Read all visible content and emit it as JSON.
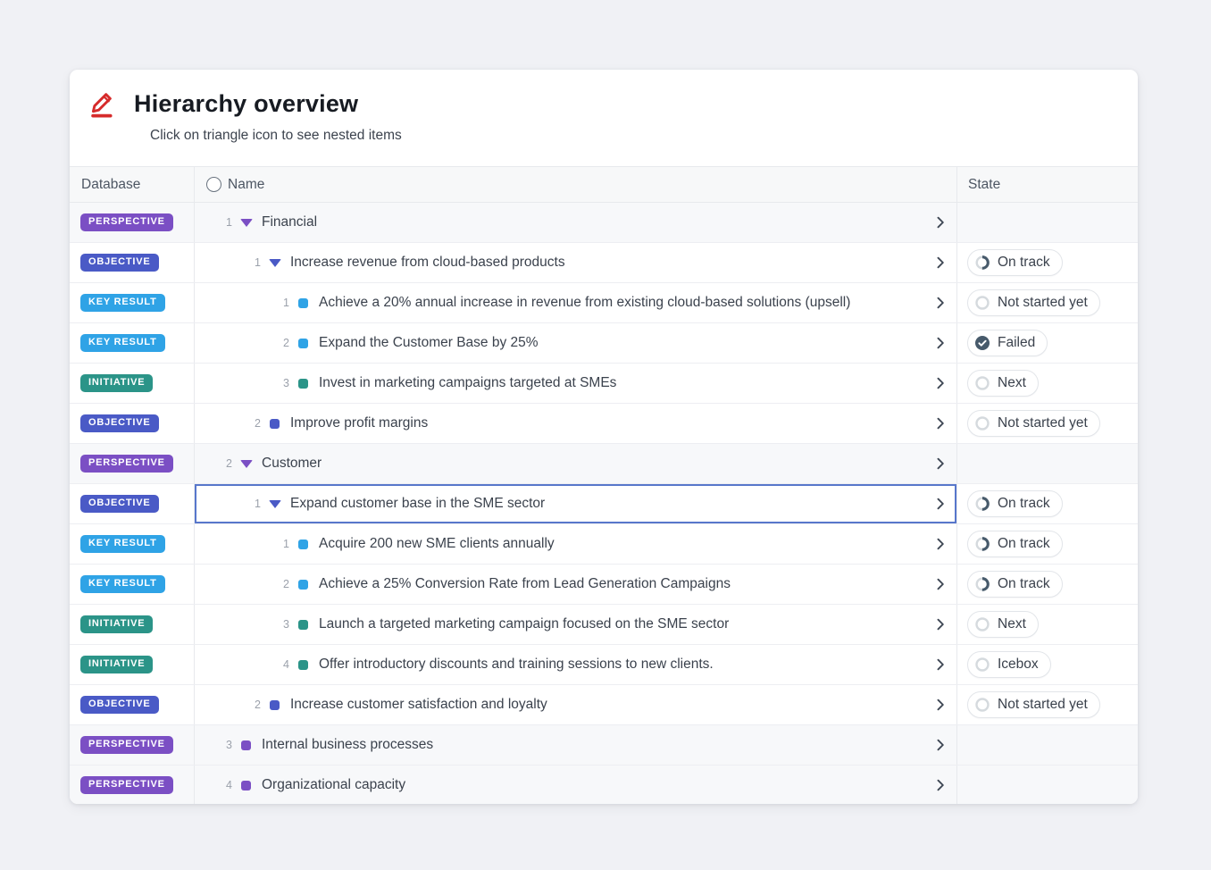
{
  "page": {
    "background": "#f0f1f5"
  },
  "header": {
    "icon": "pencil-icon",
    "icon_color": "#d62b2b",
    "title": "Hierarchy overview",
    "subtitle": "Click on triangle icon to see nested items"
  },
  "columns": {
    "database": "Database",
    "name": "Name",
    "state": "State"
  },
  "colors": {
    "perspective": "#7b4fc4",
    "objective": "#4a5ac6",
    "key_result": "#2fa3e6",
    "initiative": "#2b9488",
    "state_dark": "#475a6b",
    "state_ring": "#d5dade",
    "selected_border": "#5877cb"
  },
  "rows": [
    {
      "database": "PERSPECTIVE",
      "type": "perspective",
      "number": "1",
      "indent": 0,
      "icon": "triangle",
      "name": "Financial",
      "state": null,
      "group_row": true,
      "selected": false
    },
    {
      "database": "OBJECTIVE",
      "type": "objective",
      "number": "1",
      "indent": 1,
      "icon": "triangle",
      "name": "Increase revenue from cloud-based products",
      "state": {
        "label": "On track",
        "icon": "progress"
      },
      "group_row": false,
      "selected": false
    },
    {
      "database": "KEY RESULT",
      "type": "key_result",
      "number": "1",
      "indent": 2,
      "icon": "square",
      "name": "Achieve a 20% annual increase in revenue from existing cloud-based solutions (upsell)",
      "state": {
        "label": "Not started yet",
        "icon": "empty"
      },
      "group_row": false,
      "selected": false
    },
    {
      "database": "KEY RESULT",
      "type": "key_result",
      "number": "2",
      "indent": 2,
      "icon": "square",
      "name": "Expand the Customer Base by 25%",
      "state": {
        "label": "Failed",
        "icon": "check"
      },
      "group_row": false,
      "selected": false
    },
    {
      "database": "INITIATIVE",
      "type": "initiative",
      "number": "3",
      "indent": 2,
      "icon": "square",
      "name": "Invest in marketing campaigns targeted at SMEs",
      "state": {
        "label": "Next",
        "icon": "empty"
      },
      "group_row": false,
      "selected": false
    },
    {
      "database": "OBJECTIVE",
      "type": "objective",
      "number": "2",
      "indent": 1,
      "icon": "square",
      "name": "Improve profit margins",
      "state": {
        "label": "Not started yet",
        "icon": "empty"
      },
      "group_row": false,
      "selected": false
    },
    {
      "database": "PERSPECTIVE",
      "type": "perspective",
      "number": "2",
      "indent": 0,
      "icon": "triangle",
      "name": "Customer",
      "state": null,
      "group_row": true,
      "selected": false
    },
    {
      "database": "OBJECTIVE",
      "type": "objective",
      "number": "1",
      "indent": 1,
      "icon": "triangle",
      "name": "Expand customer base in the SME sector",
      "state": {
        "label": "On track",
        "icon": "progress"
      },
      "group_row": false,
      "selected": true
    },
    {
      "database": "KEY RESULT",
      "type": "key_result",
      "number": "1",
      "indent": 2,
      "icon": "square",
      "name": "Acquire 200 new SME clients annually",
      "state": {
        "label": "On track",
        "icon": "progress"
      },
      "group_row": false,
      "selected": false
    },
    {
      "database": "KEY RESULT",
      "type": "key_result",
      "number": "2",
      "indent": 2,
      "icon": "square",
      "name": "Achieve a 25% Conversion Rate from Lead Generation Campaigns",
      "state": {
        "label": "On track",
        "icon": "progress"
      },
      "group_row": false,
      "selected": false
    },
    {
      "database": "INITIATIVE",
      "type": "initiative",
      "number": "3",
      "indent": 2,
      "icon": "square",
      "name": "Launch a targeted marketing campaign focused on the SME sector",
      "state": {
        "label": "Next",
        "icon": "empty"
      },
      "group_row": false,
      "selected": false
    },
    {
      "database": "INITIATIVE",
      "type": "initiative",
      "number": "4",
      "indent": 2,
      "icon": "square",
      "name": "Offer introductory discounts and training sessions to new clients.",
      "state": {
        "label": "Icebox",
        "icon": "empty"
      },
      "group_row": false,
      "selected": false
    },
    {
      "database": "OBJECTIVE",
      "type": "objective",
      "number": "2",
      "indent": 1,
      "icon": "square",
      "name": "Increase customer satisfaction and loyalty",
      "state": {
        "label": "Not started yet",
        "icon": "empty"
      },
      "group_row": false,
      "selected": false
    },
    {
      "database": "PERSPECTIVE",
      "type": "perspective",
      "number": "3",
      "indent": 0,
      "icon": "square",
      "name": "Internal business processes",
      "state": null,
      "group_row": true,
      "selected": false
    },
    {
      "database": "PERSPECTIVE",
      "type": "perspective",
      "number": "4",
      "indent": 0,
      "icon": "square",
      "name": "Organizational capacity",
      "state": null,
      "group_row": true,
      "selected": false
    }
  ]
}
